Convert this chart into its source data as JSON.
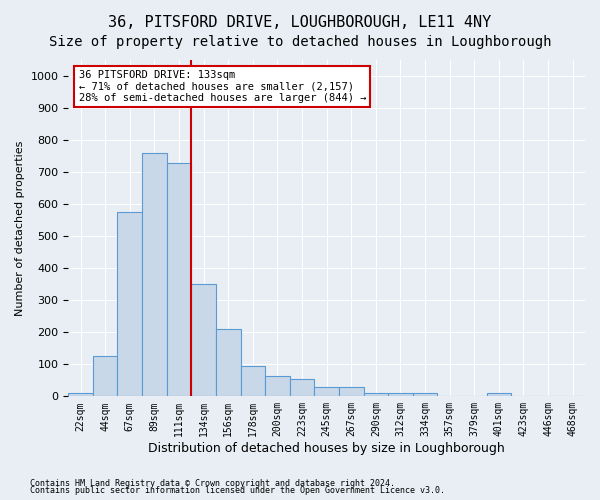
{
  "title": "36, PITSFORD DRIVE, LOUGHBOROUGH, LE11 4NY",
  "subtitle": "Size of property relative to detached houses in Loughborough",
  "xlabel": "Distribution of detached houses by size in Loughborough",
  "ylabel": "Number of detached properties",
  "footnote1": "Contains HM Land Registry data © Crown copyright and database right 2024.",
  "footnote2": "Contains public sector information licensed under the Open Government Licence v3.0.",
  "categories": [
    "22sqm",
    "44sqm",
    "67sqm",
    "89sqm",
    "111sqm",
    "134sqm",
    "156sqm",
    "178sqm",
    "200sqm",
    "223sqm",
    "245sqm",
    "267sqm",
    "290sqm",
    "312sqm",
    "334sqm",
    "357sqm",
    "379sqm",
    "401sqm",
    "423sqm",
    "446sqm",
    "468sqm"
  ],
  "values": [
    10,
    125,
    575,
    760,
    730,
    350,
    210,
    95,
    65,
    55,
    30,
    30,
    10,
    10,
    10,
    0,
    0,
    10,
    0,
    0,
    0
  ],
  "bar_color": "#c8d8e8",
  "bar_edge_color": "#5b9bd5",
  "property_line_label": "36 PITSFORD DRIVE: 133sqm",
  "annotation_line1": "← 71% of detached houses are smaller (2,157)",
  "annotation_line2": "28% of semi-detached houses are larger (844) →",
  "annotation_box_color": "#ffffff",
  "annotation_box_edge": "#cc0000",
  "property_line_color": "#cc0000",
  "property_line_x": 4.5,
  "ylim": [
    0,
    1050
  ],
  "yticks": [
    0,
    100,
    200,
    300,
    400,
    500,
    600,
    700,
    800,
    900,
    1000
  ],
  "background_color": "#e8eef4",
  "plot_background": "#e8eef4",
  "grid_color": "#ffffff",
  "title_fontsize": 11,
  "subtitle_fontsize": 10
}
